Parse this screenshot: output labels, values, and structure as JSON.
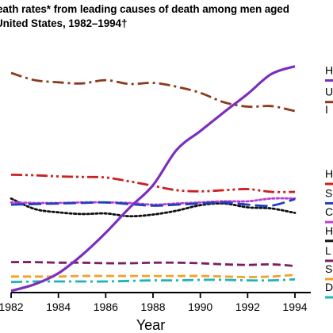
{
  "title_lines": [
    "eath rates* from leading causes of death among men aged",
    "United States, 1982–1994†"
  ],
  "chart_data": {
    "type": "line",
    "xlabel": "Year",
    "ylabel": "",
    "x_ticks": [
      1982,
      1984,
      1986,
      1988,
      1990,
      1992,
      1994
    ],
    "xlim": [
      1982,
      1994
    ],
    "ylim": [
      0,
      45
    ],
    "grid": false,
    "legend_placement": "right",
    "series": [
      {
        "name": "H",
        "color": "#7b2fbe",
        "dash": "solid",
        "x": [
          1982,
          1983,
          1984,
          1985,
          1986,
          1987,
          1988,
          1989,
          1990,
          1991,
          1992,
          1993,
          1994
        ],
        "y": [
          0.3,
          1.5,
          3.5,
          6.8,
          10.8,
          15.3,
          19.4,
          25.8,
          29.2,
          32.6,
          35.9,
          39.5,
          40.9
        ]
      },
      {
        "name": "U",
        "color": "#8b3a1a",
        "dash": "dashdot",
        "x": [
          1982,
          1983,
          1984,
          1985,
          1986,
          1987,
          1988,
          1989,
          1990,
          1991,
          1992,
          1993,
          1994
        ],
        "y": [
          39.7,
          38.4,
          38.0,
          37.8,
          38.4,
          37.7,
          37.9,
          37.2,
          36.1,
          34.4,
          33.6,
          33.7,
          32.8
        ]
      },
      {
        "name": "H",
        "color": "#cc1f1f",
        "dash": "dashdotdot",
        "x": [
          1982,
          1983,
          1984,
          1985,
          1986,
          1987,
          1988,
          1989,
          1990,
          1991,
          1992,
          1993,
          1994
        ],
        "y": [
          21.3,
          21.2,
          21.0,
          20.9,
          20.8,
          20.1,
          19.3,
          18.5,
          18.3,
          18.5,
          18.7,
          18.2,
          18.2
        ]
      },
      {
        "name": "S",
        "color": "#1f3fbf",
        "dash": "longdash",
        "x": [
          1982,
          1983,
          1984,
          1985,
          1986,
          1987,
          1988,
          1989,
          1990,
          1991,
          1992,
          1993,
          1994
        ],
        "y": [
          15.9,
          16.0,
          16.1,
          16.2,
          16.3,
          16.0,
          15.7,
          15.9,
          16.1,
          16.3,
          15.9,
          15.7,
          16.9
        ]
      },
      {
        "name": "C",
        "color": "#c03fd0",
        "dash": "dotted",
        "x": [
          1982,
          1983,
          1984,
          1985,
          1986,
          1987,
          1988,
          1989,
          1990,
          1991,
          1992,
          1993,
          1994
        ],
        "y": [
          16.3,
          16.2,
          16.2,
          16.3,
          16.3,
          16.2,
          15.9,
          16.1,
          16.3,
          16.5,
          16.5,
          17.0,
          17.0
        ]
      },
      {
        "name": "H",
        "color": "#111111",
        "dash": "dotted",
        "x": [
          1982,
          1983,
          1984,
          1985,
          1986,
          1987,
          1988,
          1989,
          1990,
          1991,
          1992,
          1993,
          1994
        ],
        "y": [
          17.0,
          15.1,
          14.5,
          14.2,
          14.3,
          13.8,
          14.1,
          14.8,
          15.8,
          16.1,
          15.4,
          15.2,
          14.4
        ]
      },
      {
        "name": "L",
        "color": "#7a1f66",
        "dash": "dashed",
        "x": [
          1982,
          1983,
          1984,
          1985,
          1986,
          1987,
          1988,
          1989,
          1990,
          1991,
          1992,
          1993,
          1994
        ],
        "y": [
          5.5,
          5.5,
          5.4,
          5.4,
          5.3,
          5.3,
          5.4,
          5.4,
          5.3,
          5.1,
          5.0,
          5.1,
          4.8
        ]
      },
      {
        "name": "S",
        "color": "#f5a02a",
        "dash": "dashed",
        "x": [
          1982,
          1983,
          1984,
          1985,
          1986,
          1987,
          1988,
          1989,
          1990,
          1991,
          1992,
          1993,
          1994
        ],
        "y": [
          2.9,
          2.9,
          2.9,
          3.0,
          3.0,
          3.0,
          3.0,
          3.0,
          3.0,
          2.9,
          2.8,
          2.9,
          3.2
        ]
      },
      {
        "name": "D",
        "color": "#1fb5b5",
        "dash": "dashdot",
        "x": [
          1982,
          1983,
          1984,
          1985,
          1986,
          1987,
          1988,
          1989,
          1990,
          1991,
          1992,
          1993,
          1994
        ],
        "y": [
          1.9,
          2.0,
          2.0,
          2.0,
          2.0,
          2.1,
          2.2,
          2.2,
          2.3,
          2.3,
          2.2,
          2.2,
          2.4
        ]
      }
    ],
    "legend_entries": [
      {
        "label": "H",
        "series_index": 0,
        "legend_y": 40.2
      },
      {
        "label": "U",
        "series_index": 1,
        "legend_y": 36.3
      },
      {
        "label": "I",
        "series_index": 1,
        "legend_y": 33.1,
        "is_second_line": true
      },
      {
        "label": "H",
        "series_index": 2,
        "legend_y": 21.5
      },
      {
        "label": "S",
        "series_index": 3,
        "legend_y": 18.0
      },
      {
        "label": "C",
        "series_index": 4,
        "legend_y": 14.6
      },
      {
        "label": "H",
        "series_index": 5,
        "legend_y": 11.2
      },
      {
        "label": "L",
        "series_index": 6,
        "legend_y": 7.6
      },
      {
        "label": "S",
        "series_index": 7,
        "legend_y": 4.3
      },
      {
        "label": "D",
        "series_index": 8,
        "legend_y": 1.0
      }
    ]
  }
}
